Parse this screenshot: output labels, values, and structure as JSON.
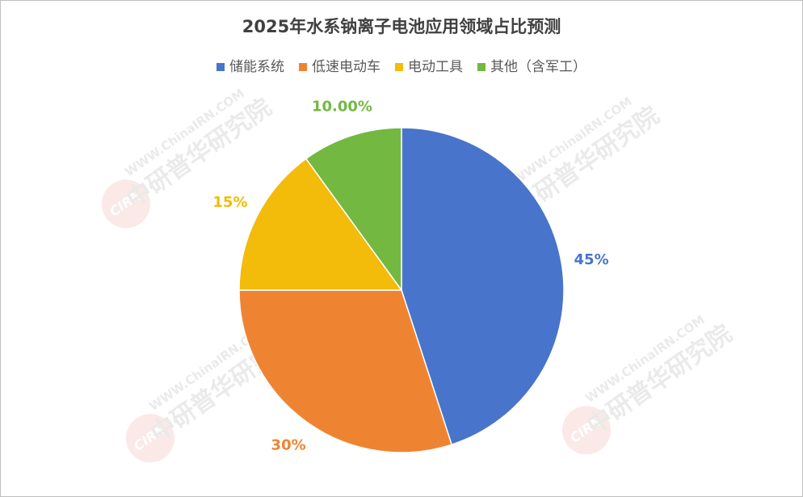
{
  "chart_data": {
    "type": "pie",
    "title": "2025年水系钠离子电池应用领域占比预测",
    "categories": [
      "储能系统",
      "低速电动车",
      "电动工具",
      "其他（含军工）"
    ],
    "values": [
      45,
      30,
      15,
      10
    ],
    "value_labels": [
      "45%",
      "30%",
      "15%",
      "10.00%"
    ],
    "colors": [
      "#4874cb",
      "#ee8432",
      "#f3bb0a",
      "#73b841"
    ],
    "legend": "top",
    "watermark": {
      "logo": "CIRN",
      "url": "WWW.ChinaIRN.COM",
      "text": "中研普华研究院"
    }
  }
}
